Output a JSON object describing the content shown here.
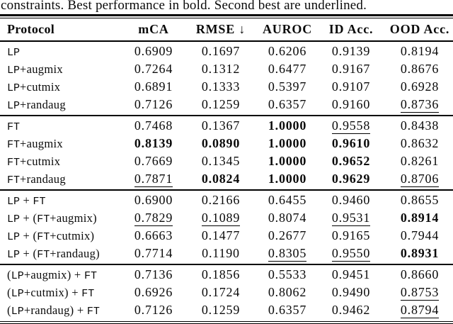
{
  "caption": "constraints. Best performance in bold. Second best are underlined.",
  "table": {
    "columns": [
      "Protocol",
      "mCA",
      "RMSE ↓",
      "AUROC",
      "ID Acc.",
      "OOD Acc."
    ],
    "groups": [
      {
        "rows": [
          {
            "protocol": "LP",
            "cells": [
              {
                "v": "0.6909",
                "f": ""
              },
              {
                "v": "0.1697",
                "f": ""
              },
              {
                "v": "0.6206",
                "f": ""
              },
              {
                "v": "0.9139",
                "f": ""
              },
              {
                "v": "0.8194",
                "f": ""
              }
            ]
          },
          {
            "protocol": "LP+augmix",
            "cells": [
              {
                "v": "0.7264",
                "f": ""
              },
              {
                "v": "0.1312",
                "f": ""
              },
              {
                "v": "0.6477",
                "f": ""
              },
              {
                "v": "0.9167",
                "f": ""
              },
              {
                "v": "0.8676",
                "f": ""
              }
            ]
          },
          {
            "protocol": "LP+cutmix",
            "cells": [
              {
                "v": "0.6891",
                "f": ""
              },
              {
                "v": "0.1333",
                "f": ""
              },
              {
                "v": "0.5397",
                "f": ""
              },
              {
                "v": "0.9107",
                "f": ""
              },
              {
                "v": "0.6928",
                "f": ""
              }
            ]
          },
          {
            "protocol": "LP+randaug",
            "cells": [
              {
                "v": "0.7126",
                "f": ""
              },
              {
                "v": "0.1259",
                "f": ""
              },
              {
                "v": "0.6357",
                "f": ""
              },
              {
                "v": "0.9160",
                "f": ""
              },
              {
                "v": "0.8736",
                "f": "u"
              }
            ]
          }
        ]
      },
      {
        "rows": [
          {
            "protocol": "FT",
            "cells": [
              {
                "v": "0.7468",
                "f": ""
              },
              {
                "v": "0.1367",
                "f": ""
              },
              {
                "v": "1.0000",
                "f": "b"
              },
              {
                "v": "0.9558",
                "f": "u"
              },
              {
                "v": "0.8438",
                "f": ""
              }
            ]
          },
          {
            "protocol": "FT+augmix",
            "cells": [
              {
                "v": "0.8139",
                "f": "b"
              },
              {
                "v": "0.0890",
                "f": "b"
              },
              {
                "v": "1.0000",
                "f": "b"
              },
              {
                "v": "0.9610",
                "f": "b"
              },
              {
                "v": "0.8632",
                "f": ""
              }
            ]
          },
          {
            "protocol": "FT+cutmix",
            "cells": [
              {
                "v": "0.7669",
                "f": ""
              },
              {
                "v": "0.1345",
                "f": ""
              },
              {
                "v": "1.0000",
                "f": "b"
              },
              {
                "v": "0.9652",
                "f": "b"
              },
              {
                "v": "0.8261",
                "f": ""
              }
            ]
          },
          {
            "protocol": "FT+randaug",
            "cells": [
              {
                "v": "0.7871",
                "f": "u"
              },
              {
                "v": "0.0824",
                "f": "b"
              },
              {
                "v": "1.0000",
                "f": "b"
              },
              {
                "v": "0.9629",
                "f": "b"
              },
              {
                "v": "0.8706",
                "f": "u"
              }
            ]
          }
        ]
      },
      {
        "rows": [
          {
            "protocol": "LP + FT",
            "cells": [
              {
                "v": "0.6900",
                "f": ""
              },
              {
                "v": "0.2166",
                "f": ""
              },
              {
                "v": "0.6455",
                "f": ""
              },
              {
                "v": "0.9460",
                "f": ""
              },
              {
                "v": "0.8655",
                "f": ""
              }
            ]
          },
          {
            "protocol": "LP + (FT+augmix)",
            "cells": [
              {
                "v": "0.7829",
                "f": "u"
              },
              {
                "v": "0.1089",
                "f": "u"
              },
              {
                "v": "0.8074",
                "f": ""
              },
              {
                "v": "0.9531",
                "f": "u"
              },
              {
                "v": "0.8914",
                "f": "b"
              }
            ]
          },
          {
            "protocol": "LP + (FT+cutmix)",
            "cells": [
              {
                "v": "0.6663",
                "f": ""
              },
              {
                "v": "0.1477",
                "f": ""
              },
              {
                "v": "0.2677",
                "f": ""
              },
              {
                "v": "0.9165",
                "f": ""
              },
              {
                "v": "0.7944",
                "f": ""
              }
            ]
          },
          {
            "protocol": "LP + (FT+randaug)",
            "cells": [
              {
                "v": "0.7714",
                "f": ""
              },
              {
                "v": "0.1190",
                "f": ""
              },
              {
                "v": "0.8305",
                "f": "u"
              },
              {
                "v": "0.9550",
                "f": "u"
              },
              {
                "v": "0.8931",
                "f": "b"
              }
            ]
          }
        ]
      },
      {
        "rows": [
          {
            "protocol": "(LP+augmix) + FT",
            "cells": [
              {
                "v": "0.7136",
                "f": ""
              },
              {
                "v": "0.1856",
                "f": ""
              },
              {
                "v": "0.5533",
                "f": ""
              },
              {
                "v": "0.9451",
                "f": ""
              },
              {
                "v": "0.8660",
                "f": ""
              }
            ]
          },
          {
            "protocol": "(LP+cutmix) + FT",
            "cells": [
              {
                "v": "0.6926",
                "f": ""
              },
              {
                "v": "0.1724",
                "f": ""
              },
              {
                "v": "0.8062",
                "f": ""
              },
              {
                "v": "0.9490",
                "f": ""
              },
              {
                "v": "0.8753",
                "f": "u"
              }
            ]
          },
          {
            "protocol": "(LP+randaug) + FT",
            "cells": [
              {
                "v": "0.7126",
                "f": ""
              },
              {
                "v": "0.1259",
                "f": ""
              },
              {
                "v": "0.6357",
                "f": ""
              },
              {
                "v": "0.9462",
                "f": ""
              },
              {
                "v": "0.8794",
                "f": "u"
              }
            ]
          }
        ]
      }
    ]
  }
}
